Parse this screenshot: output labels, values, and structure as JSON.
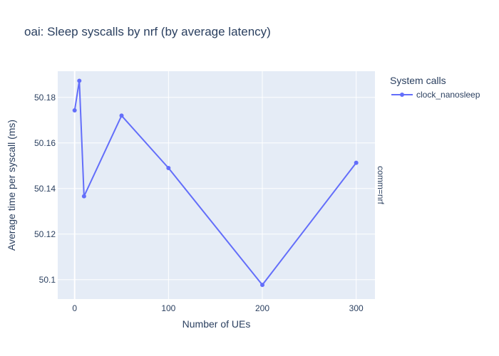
{
  "chart_data": {
    "type": "line",
    "title": "oai: Sleep syscalls by nrf (by average latency)",
    "xlabel": "Number of UEs",
    "ylabel": "Average time per syscall (ms)",
    "facet_label": "comm=nrf",
    "legend_title": "System calls",
    "legend_position": "top-right",
    "grid": true,
    "xlim": [
      -18,
      320
    ],
    "ylim": [
      50.0915,
      50.1915
    ],
    "x_ticks": [
      0,
      100,
      200,
      300
    ],
    "y_ticks": [
      50.1,
      50.12,
      50.14,
      50.16,
      50.18
    ],
    "y_tick_labels": [
      "50.1",
      "50.12",
      "50.14",
      "50.16",
      "50.18"
    ],
    "series": [
      {
        "name": "clock_nanosleep",
        "color": "#636efa",
        "x": [
          0,
          5,
          10,
          50,
          100,
          200,
          300
        ],
        "y": [
          50.1743,
          50.1873,
          50.1366,
          50.172,
          50.149,
          50.0977,
          50.1513
        ]
      }
    ]
  }
}
